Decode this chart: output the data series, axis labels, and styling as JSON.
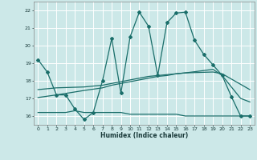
{
  "xlabel": "Humidex (Indice chaleur)",
  "bg_color": "#cce8e8",
  "grid_color": "#ffffff",
  "line_color": "#1a6e6a",
  "xlim": [
    -0.5,
    23.5
  ],
  "ylim": [
    15.5,
    22.5
  ],
  "yticks": [
    16,
    17,
    18,
    19,
    20,
    21,
    22
  ],
  "xticks": [
    0,
    1,
    2,
    3,
    4,
    5,
    6,
    7,
    8,
    9,
    10,
    11,
    12,
    13,
    14,
    15,
    16,
    17,
    18,
    19,
    20,
    21,
    22,
    23
  ],
  "line1_x": [
    0,
    1,
    2,
    3,
    4,
    5,
    6,
    7,
    8,
    9,
    10,
    11,
    12,
    13,
    14,
    15,
    16,
    17,
    18,
    19,
    20,
    21,
    22,
    23
  ],
  "line1_y": [
    19.2,
    18.5,
    17.2,
    17.2,
    16.4,
    15.8,
    16.2,
    18.0,
    20.4,
    17.3,
    20.5,
    21.9,
    21.1,
    18.3,
    21.3,
    21.85,
    21.9,
    20.3,
    19.5,
    18.9,
    18.3,
    17.1,
    16.0,
    16.0
  ],
  "line2_x": [
    0,
    1,
    2,
    3,
    4,
    5,
    6,
    7,
    8,
    9,
    10,
    11,
    12,
    13,
    14,
    15,
    16,
    17,
    18,
    19,
    20,
    21,
    22,
    23
  ],
  "line2_y": [
    16.2,
    16.2,
    16.2,
    16.2,
    16.3,
    16.2,
    16.2,
    16.2,
    16.2,
    16.2,
    16.1,
    16.1,
    16.1,
    16.1,
    16.1,
    16.1,
    16.0,
    16.0,
    16.0,
    16.0,
    16.0,
    16.0,
    16.0,
    16.0
  ],
  "line3_x": [
    0,
    2,
    5,
    7,
    8,
    9,
    10,
    11,
    12,
    13,
    14,
    15,
    16,
    19,
    20,
    22,
    23
  ],
  "line3_y": [
    17.05,
    17.2,
    17.45,
    17.6,
    17.75,
    17.85,
    17.95,
    18.05,
    18.15,
    18.25,
    18.3,
    18.4,
    18.45,
    18.65,
    18.3,
    17.0,
    16.8
  ],
  "line4_x": [
    0,
    2,
    5,
    7,
    8,
    9,
    10,
    11,
    12,
    13,
    14,
    15,
    16,
    19,
    20,
    22,
    23
  ],
  "line4_y": [
    17.5,
    17.6,
    17.65,
    17.75,
    17.85,
    17.95,
    18.05,
    18.15,
    18.25,
    18.3,
    18.35,
    18.4,
    18.45,
    18.5,
    18.4,
    17.8,
    17.5
  ]
}
